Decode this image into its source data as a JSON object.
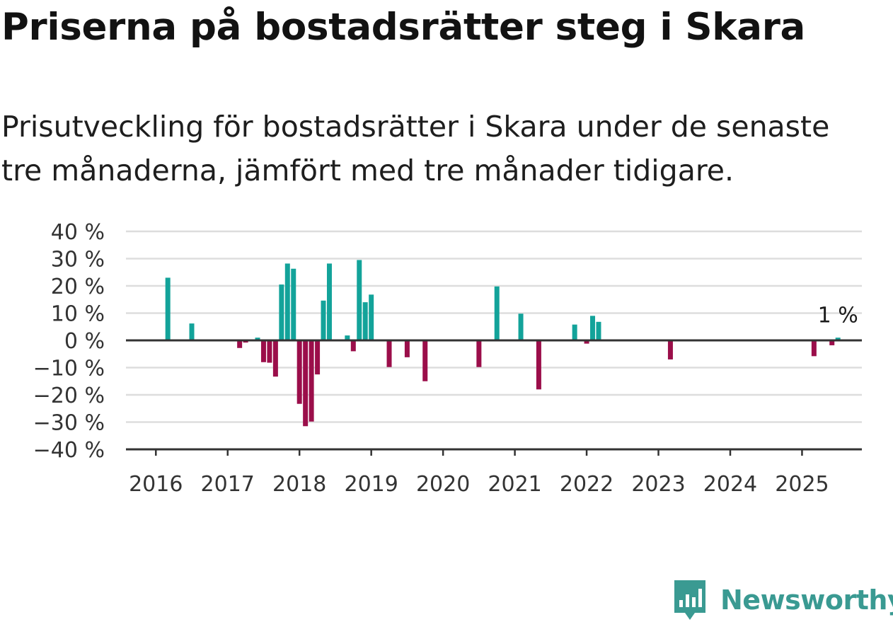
{
  "title": "Priserna på bostadsrätter steg i Skara",
  "subtitle": "Prisutveckling för bostadsrätter i Skara under de senaste tre månaderna, jämfört med tre månader tidigare.",
  "brand": {
    "name": "Newsworthy",
    "color": "#3a9a92",
    "icon": "newsworthy-chart-icon"
  },
  "colors": {
    "positive": "#13a39a",
    "negative": "#9b0e4a",
    "grid": "#dddddd",
    "axis": "#333333"
  },
  "chart_data": {
    "type": "bar",
    "ylim": [
      -40,
      40
    ],
    "yticks": [
      40,
      30,
      20,
      10,
      0,
      -10,
      -20,
      -30,
      -40
    ],
    "ytick_labels": [
      "40 %",
      "30 %",
      "20 %",
      "10 %",
      "0 %",
      "−10 %",
      "−20 %",
      "−30 %",
      "−40 %"
    ],
    "xlim": [
      "2015-08",
      "2025-11"
    ],
    "xticks": [
      "2016",
      "2017",
      "2018",
      "2019",
      "2020",
      "2021",
      "2022",
      "2023",
      "2024",
      "2025"
    ],
    "grid": true,
    "bars": [
      {
        "date": "2016-03",
        "value": 23
      },
      {
        "date": "2016-07",
        "value": 6.2
      },
      {
        "date": "2017-03",
        "value": -2.8
      },
      {
        "date": "2017-04",
        "value": -0.8
      },
      {
        "date": "2017-06",
        "value": 1
      },
      {
        "date": "2017-07",
        "value": -8
      },
      {
        "date": "2017-08",
        "value": -8.2
      },
      {
        "date": "2017-09",
        "value": -13.3
      },
      {
        "date": "2017-10",
        "value": 20.5
      },
      {
        "date": "2017-11",
        "value": 28.2
      },
      {
        "date": "2017-12",
        "value": 26.3
      },
      {
        "date": "2018-01",
        "value": -23.3
      },
      {
        "date": "2018-02",
        "value": -31.5
      },
      {
        "date": "2018-03",
        "value": -29.8
      },
      {
        "date": "2018-04",
        "value": -12.5
      },
      {
        "date": "2018-05",
        "value": 14.6
      },
      {
        "date": "2018-06",
        "value": 28.2
      },
      {
        "date": "2018-09",
        "value": 1.8
      },
      {
        "date": "2018-10",
        "value": -4
      },
      {
        "date": "2018-11",
        "value": 29.5
      },
      {
        "date": "2018-12",
        "value": 14
      },
      {
        "date": "2019-01",
        "value": 16.8
      },
      {
        "date": "2019-04",
        "value": -9.8
      },
      {
        "date": "2019-07",
        "value": -6.2
      },
      {
        "date": "2019-10",
        "value": -15
      },
      {
        "date": "2020-07",
        "value": -9.8
      },
      {
        "date": "2020-10",
        "value": 19.8
      },
      {
        "date": "2021-02",
        "value": 9.8
      },
      {
        "date": "2021-05",
        "value": -18
      },
      {
        "date": "2021-11",
        "value": 5.8
      },
      {
        "date": "2022-01",
        "value": -1.2
      },
      {
        "date": "2022-02",
        "value": 9
      },
      {
        "date": "2022-03",
        "value": 6.8
      },
      {
        "date": "2023-03",
        "value": -7
      },
      {
        "date": "2025-03",
        "value": -5.8
      },
      {
        "date": "2025-06",
        "value": -1.8
      },
      {
        "date": "2025-07",
        "value": 1
      }
    ],
    "annotations": [
      {
        "date": "2025-07",
        "label": "1 %"
      }
    ]
  }
}
